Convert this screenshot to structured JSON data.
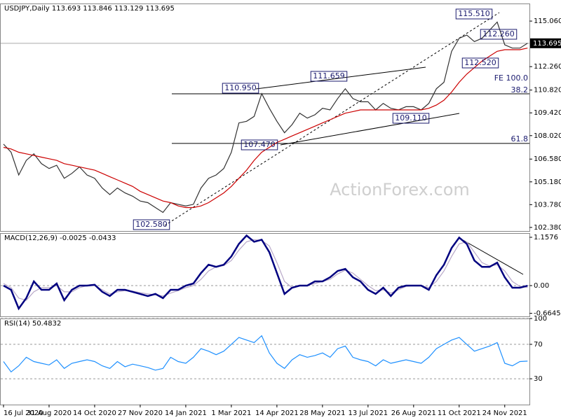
{
  "chart_data": [
    {
      "type": "line",
      "title": "USDJPY,Daily  113.693 113.846 113.129 113.695",
      "watermark": "ActionForex.com",
      "ylim": [
        102.16,
        116.14
      ],
      "yticks": [
        {
          "value": 102.38,
          "label": "102.380"
        },
        {
          "value": 103.78,
          "label": "103.780"
        },
        {
          "value": 105.18,
          "label": "105.180"
        },
        {
          "value": 106.58,
          "label": "106.580"
        },
        {
          "value": 108.02,
          "label": "108.020"
        },
        {
          "value": 109.42,
          "label": "109.420"
        },
        {
          "value": 110.82,
          "label": "110.820"
        },
        {
          "value": 112.26,
          "label": "112.260"
        },
        {
          "value": 115.06,
          "label": "115.060"
        }
      ],
      "last_price": 113.695,
      "hlines": [
        110.59,
        107.54
      ],
      "annotations": [
        "115.510",
        "112.260",
        "112.520",
        "110.950",
        "111.659",
        "107.470",
        "109.110",
        "102.580",
        "FE 100.0",
        "38.2",
        "61.8"
      ],
      "series": [
        {
          "color": "#333333",
          "values": [
            107.5,
            107.0,
            105.6,
            106.5,
            106.9,
            106.3,
            106.0,
            106.2,
            105.4,
            105.7,
            106.1,
            105.6,
            105.4,
            104.8,
            104.4,
            104.8,
            104.5,
            104.3,
            104.0,
            103.9,
            103.6,
            103.3,
            103.9,
            103.8,
            103.7,
            103.8,
            104.8,
            105.4,
            105.6,
            106.0,
            107.0,
            108.8,
            108.9,
            109.2,
            110.6,
            109.7,
            108.9,
            108.2,
            108.7,
            109.4,
            109.1,
            109.3,
            109.7,
            109.6,
            110.3,
            110.9,
            110.3,
            110.1,
            110.1,
            109.6,
            110.0,
            109.7,
            109.6,
            109.8,
            109.8,
            109.6,
            110.0,
            110.9,
            111.3,
            113.2,
            114.0,
            114.2,
            113.8,
            114.0,
            114.5,
            115.0,
            113.6,
            113.4,
            113.4,
            113.695
          ]
        },
        {
          "color": "#cc0000",
          "values": [
            107.3,
            107.2,
            107.0,
            106.9,
            106.8,
            106.7,
            106.6,
            106.5,
            106.3,
            106.2,
            106.1,
            106.0,
            105.9,
            105.7,
            105.5,
            105.3,
            105.1,
            104.9,
            104.6,
            104.4,
            104.2,
            104.0,
            103.9,
            103.7,
            103.6,
            103.6,
            103.7,
            103.9,
            104.2,
            104.5,
            104.9,
            105.4,
            105.9,
            106.5,
            107.0,
            107.3,
            107.6,
            107.8,
            108.0,
            108.2,
            108.4,
            108.6,
            108.8,
            109.0,
            109.2,
            109.4,
            109.5,
            109.6,
            109.6,
            109.6,
            109.6,
            109.6,
            109.6,
            109.6,
            109.6,
            109.6,
            109.7,
            109.9,
            110.2,
            110.7,
            111.3,
            111.8,
            112.2,
            112.6,
            112.9,
            113.2,
            113.3,
            113.3,
            113.3,
            113.4
          ]
        }
      ]
    },
    {
      "type": "line",
      "title": "MACD(12,26,9) -0.0025 -0.0433",
      "ylim": [
        -0.738,
        1.258
      ],
      "yticks": [
        -0.6645,
        {
          "value": 0,
          "label": "0.00"
        },
        1.1576
      ],
      "series": [
        {
          "color": "#b8a8c8",
          "values": [
            0.05,
            -0.05,
            -0.3,
            -0.35,
            -0.15,
            -0.05,
            -0.05,
            0.0,
            -0.15,
            -0.15,
            -0.05,
            0.0,
            0.0,
            -0.1,
            -0.2,
            -0.15,
            -0.12,
            -0.13,
            -0.17,
            -0.2,
            -0.22,
            -0.25,
            -0.18,
            -0.12,
            -0.05,
            0.0,
            0.15,
            0.35,
            0.45,
            0.48,
            0.6,
            0.85,
            1.05,
            1.1,
            1.08,
            0.95,
            0.55,
            0.1,
            -0.05,
            0.0,
            0.0,
            0.05,
            0.1,
            0.15,
            0.28,
            0.37,
            0.3,
            0.15,
            0.0,
            -0.12,
            -0.1,
            -0.18,
            -0.1,
            -0.02,
            0.0,
            0.0,
            -0.05,
            0.1,
            0.35,
            0.7,
            1.0,
            1.05,
            0.8,
            0.55,
            0.47,
            0.5,
            0.35,
            0.1,
            -0.02,
            -0.0433
          ]
        },
        {
          "color": "#000080",
          "values": [
            0.0,
            -0.1,
            -0.55,
            -0.3,
            0.1,
            -0.1,
            -0.1,
            0.05,
            -0.35,
            -0.1,
            0.0,
            0.0,
            0.02,
            -0.15,
            -0.25,
            -0.1,
            -0.1,
            -0.15,
            -0.2,
            -0.25,
            -0.2,
            -0.3,
            -0.1,
            -0.1,
            0.0,
            0.05,
            0.3,
            0.5,
            0.45,
            0.5,
            0.7,
            1.0,
            1.2,
            1.05,
            1.1,
            0.8,
            0.3,
            -0.2,
            -0.05,
            0.0,
            0.0,
            0.1,
            0.1,
            0.2,
            0.35,
            0.4,
            0.2,
            0.1,
            -0.1,
            -0.2,
            -0.05,
            -0.25,
            -0.05,
            0.0,
            0.0,
            0.0,
            -0.1,
            0.25,
            0.5,
            0.9,
            1.15,
            1.0,
            0.6,
            0.45,
            0.45,
            0.55,
            0.2,
            -0.05,
            -0.05,
            -0.0025
          ]
        }
      ]
    },
    {
      "type": "line",
      "title": "RSI(14) 50.4832",
      "ylim": [
        0,
        100
      ],
      "yticks": [
        30,
        70,
        100
      ],
      "categories": [
        "16 Jul 2020",
        null,
        null,
        null,
        null,
        null,
        "31 Aug 2020",
        null,
        null,
        null,
        null,
        null,
        "14 Oct 2020",
        null,
        null,
        null,
        null,
        null,
        "27 Nov 2020",
        null,
        null,
        null,
        null,
        null,
        "14 Jan 2021",
        null,
        null,
        null,
        null,
        null,
        "1 Mar 2021",
        null,
        null,
        null,
        null,
        null,
        "14 Apr 2021",
        null,
        null,
        null,
        null,
        null,
        "28 May 2021",
        null,
        null,
        null,
        null,
        null,
        "13 Jul 2021",
        null,
        null,
        null,
        null,
        null,
        "26 Aug 2021",
        null,
        null,
        null,
        null,
        null,
        "11 Oct 2021",
        null,
        null,
        null,
        null,
        null,
        "24 Nov 2021",
        null,
        null,
        null
      ],
      "series": [
        {
          "color": "#1e90ff",
          "values": [
            50,
            38,
            45,
            55,
            50,
            48,
            46,
            52,
            42,
            48,
            50,
            52,
            50,
            45,
            42,
            50,
            44,
            47,
            45,
            43,
            40,
            42,
            55,
            50,
            48,
            55,
            65,
            62,
            58,
            62,
            70,
            78,
            75,
            72,
            80,
            60,
            48,
            42,
            52,
            58,
            55,
            57,
            60,
            55,
            65,
            68,
            55,
            52,
            50,
            45,
            52,
            48,
            50,
            52,
            50,
            48,
            55,
            65,
            70,
            75,
            78,
            70,
            62,
            65,
            68,
            72,
            48,
            45,
            50,
            50.4832
          ]
        }
      ]
    }
  ]
}
